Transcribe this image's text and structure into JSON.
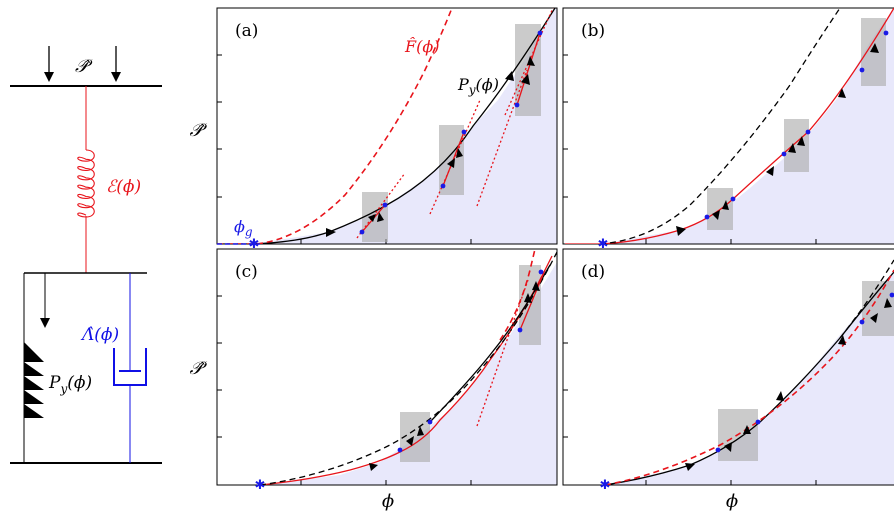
{
  "schematic": {
    "load_label": "𝒫̂",
    "spring_label": "ℰ(ϕ)",
    "yield_label": "P",
    "yield_sub": "y",
    "yield_arg": "(ϕ)",
    "damper_label": "Λ̂(ϕ)",
    "colors": {
      "spring": "#e8141b",
      "damper": "#1010e6",
      "frame": "#000000"
    }
  },
  "axes": {
    "ylabel": "𝒫̂",
    "xlabel": "ϕ",
    "shade_color": "#e8e8fb",
    "rect_color": "#a9a9a9"
  },
  "panels": {
    "a": {
      "label": "(a)"
    },
    "b": {
      "label": "(b)"
    },
    "c": {
      "label": "(c)"
    },
    "d": {
      "label": "(d)"
    }
  },
  "annotations": {
    "phi_g": "ϕ",
    "phi_g_sub": "g",
    "F_label": "F̂(ϕ)",
    "Py_label": "P",
    "Py_sub": "y",
    "Py_arg": "(ϕ)"
  },
  "colors": {
    "red": "#e8141b",
    "blue": "#1a1ae6",
    "black": "#000000"
  }
}
